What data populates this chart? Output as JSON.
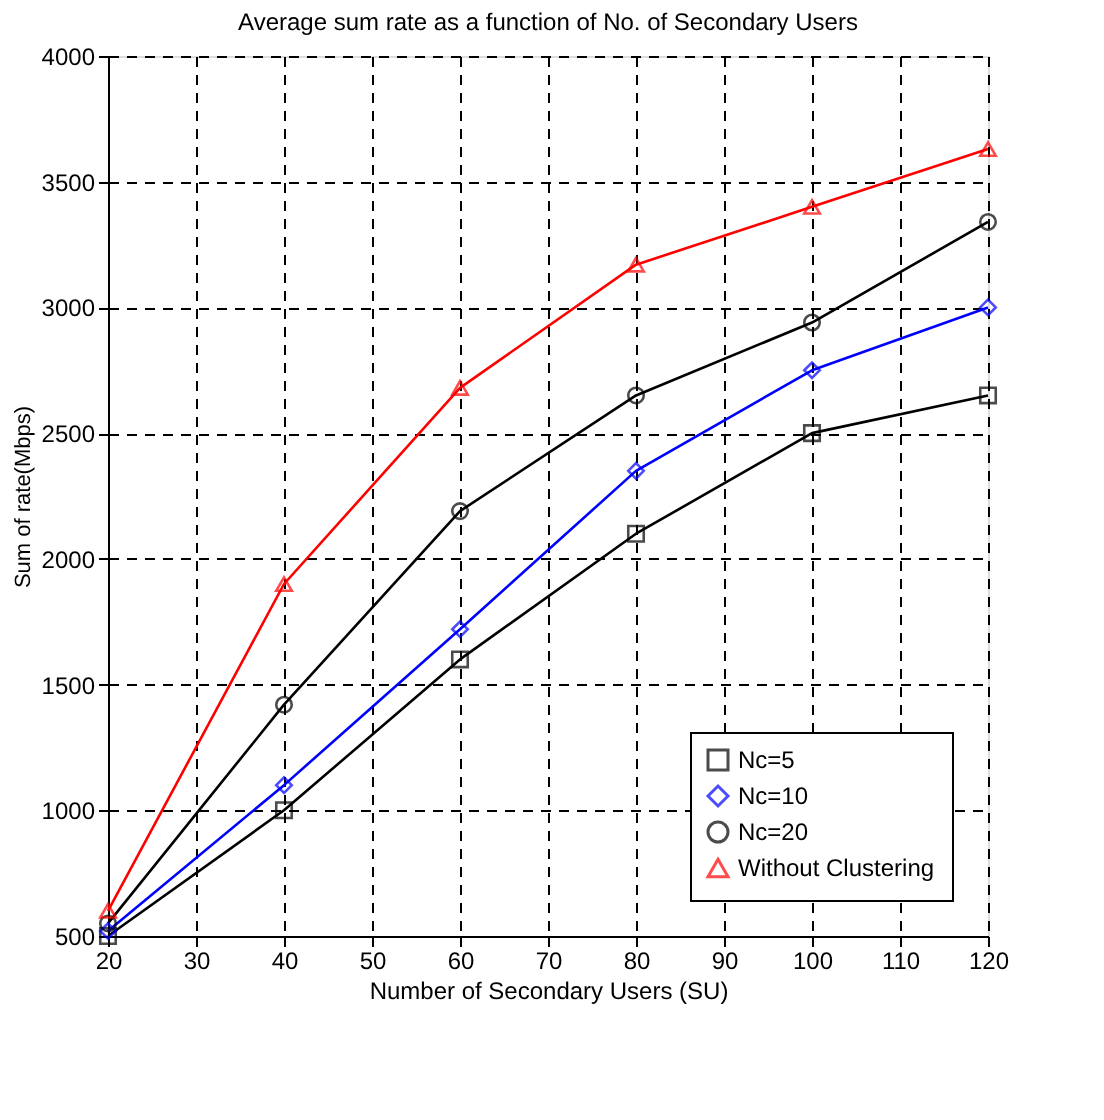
{
  "chart_data": {
    "type": "line",
    "title": "Average sum rate as a function of No. of Secondary Users",
    "xlabel": "Number of Secondary Users (SU)",
    "ylabel": "Sum of rate(Mbps)",
    "x": [
      20,
      40,
      60,
      80,
      100,
      120
    ],
    "series": [
      {
        "name": "Nc=5",
        "color": "#000000",
        "marker": "square",
        "values": [
          500,
          1000,
          1600,
          2100,
          2500,
          2650
        ]
      },
      {
        "name": "Nc=10",
        "color": "#0000ff",
        "marker": "diamond",
        "values": [
          520,
          1100,
          1720,
          2350,
          2750,
          3000
        ]
      },
      {
        "name": "Nc=20",
        "color": "#000000",
        "marker": "circle",
        "values": [
          550,
          1420,
          2190,
          2650,
          2940,
          3340
        ]
      },
      {
        "name": "Without Clustering",
        "color": "#ff0000",
        "marker": "triangle",
        "values": [
          600,
          1900,
          2680,
          3170,
          3400,
          3630
        ]
      }
    ],
    "xlim": [
      20,
      120
    ],
    "xticks": [
      20,
      30,
      40,
      50,
      60,
      70,
      80,
      90,
      100,
      110,
      120
    ],
    "ylim": [
      500,
      4000
    ],
    "yticks": [
      500,
      1000,
      1500,
      2000,
      2500,
      3000,
      3500,
      4000
    ],
    "grid": true,
    "legend": "bottom right",
    "line_style": "solid"
  }
}
